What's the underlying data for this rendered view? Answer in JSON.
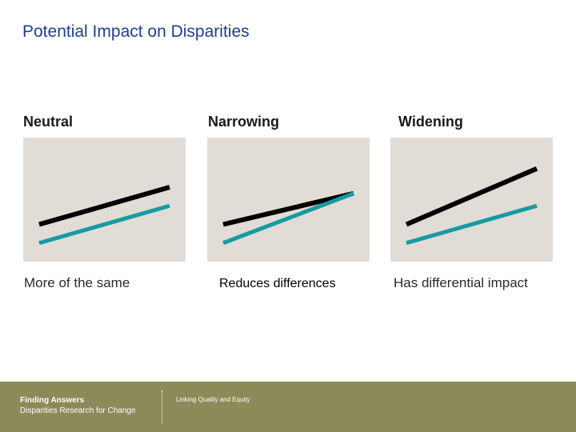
{
  "slide": {
    "title": "Potential Impact on Disparities"
  },
  "panels": [
    {
      "heading": "Neutral",
      "caption": "More of the same",
      "series": [
        {
          "name": "black-line",
          "color": "#000000",
          "start": 3.0,
          "end": 6.0
        },
        {
          "name": "teal-line",
          "color": "#179aa2",
          "start": 1.5,
          "end": 4.5
        }
      ]
    },
    {
      "heading": "Narrowing",
      "caption": "Reduces differences",
      "series": [
        {
          "name": "black-line",
          "color": "#000000",
          "start": 3.0,
          "end": 5.5
        },
        {
          "name": "teal-line",
          "color": "#179aa2",
          "start": 1.5,
          "end": 5.5
        }
      ]
    },
    {
      "heading": "Widening",
      "caption": "Has differential impact",
      "series": [
        {
          "name": "black-line",
          "color": "#000000",
          "start": 3.0,
          "end": 7.5
        },
        {
          "name": "teal-line",
          "color": "#179aa2",
          "start": 1.5,
          "end": 4.5
        }
      ]
    }
  ],
  "colors": {
    "title": "#1f3f8f",
    "panel_background": "#e1dcd5",
    "footer_background": "#8b8a59"
  },
  "footer": {
    "brand_title": "Finding Answers",
    "brand_subtitle": "Disparities Research for Change",
    "tagline": "Linking Quality and Equity"
  }
}
